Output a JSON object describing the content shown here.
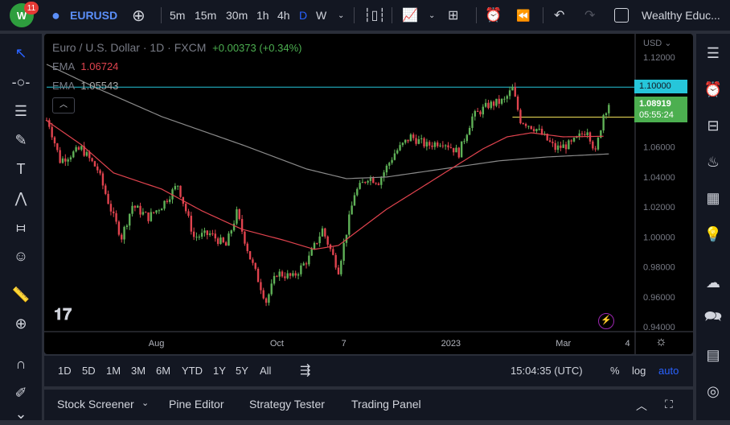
{
  "topbar": {
    "logo": "W",
    "notifications": "11",
    "symbol": "EURUSD",
    "intervals": [
      "5m",
      "15m",
      "30m",
      "1h",
      "4h",
      "D",
      "W"
    ],
    "active_interval": "D",
    "account": "Wealthy Educ..."
  },
  "legend": {
    "title": "Euro / U.S. Dollar · 1D · FXCM",
    "change": "+0.00373 (+0.34%)",
    "ema1_label": "EMA",
    "ema1_value": "1.06724",
    "ema2_label": "EMA",
    "ema2_value": "1.05543"
  },
  "price_axis": {
    "currency": "USD",
    "line_label": "1.10000",
    "current_price": "1.08919",
    "countdown": "05:55:24"
  },
  "colors": {
    "up": "#5fb157",
    "down": "#e0434e",
    "ema_fast": "#e0434e",
    "ema_slow": "#8a8a8a",
    "hline": "#26c6da",
    "hline2": "#f0e05a",
    "current": "#4caf50"
  },
  "chart_data": {
    "type": "candlestick",
    "ylim": [
      0.94,
      1.12
    ],
    "yticks": [
      "1.12000",
      "1.06000",
      "1.04000",
      "1.02000",
      "1.00000",
      "0.98000",
      "0.96000",
      "0.94000"
    ],
    "xticks": [
      {
        "label": "Aug",
        "bar": 41
      },
      {
        "label": "Oct",
        "bar": 86
      },
      {
        "label": "7",
        "bar": 111
      },
      {
        "label": "2023",
        "bar": 151
      },
      {
        "label": "Mar",
        "bar": 193
      },
      {
        "label": "4",
        "bar": 217
      }
    ],
    "bars": 211,
    "close_path": [
      [
        0,
        1.078
      ],
      [
        1,
        1.075
      ],
      [
        5,
        1.051
      ],
      [
        13,
        1.059
      ],
      [
        19,
        1.045
      ],
      [
        25,
        1.013
      ],
      [
        28,
        1.0
      ],
      [
        32,
        1.021
      ],
      [
        38,
        1.013
      ],
      [
        43,
        1.021
      ],
      [
        49,
        1.035
      ],
      [
        55,
        1.0
      ],
      [
        61,
        1.002
      ],
      [
        67,
        0.994
      ],
      [
        71,
        1.016
      ],
      [
        76,
        0.986
      ],
      [
        82,
        0.957
      ],
      [
        86,
        0.976
      ],
      [
        92,
        0.973
      ],
      [
        98,
        0.986
      ],
      [
        103,
        1.005
      ],
      [
        109,
        0.978
      ],
      [
        115,
        1.029
      ],
      [
        120,
        1.04
      ],
      [
        124,
        1.037
      ],
      [
        130,
        1.056
      ],
      [
        136,
        1.067
      ],
      [
        142,
        1.061
      ],
      [
        148,
        1.064
      ],
      [
        154,
        1.056
      ],
      [
        159,
        1.08
      ],
      [
        165,
        1.088
      ],
      [
        171,
        1.091
      ],
      [
        174,
        1.099
      ],
      [
        177,
        1.078
      ],
      [
        183,
        1.072
      ],
      [
        190,
        1.059
      ],
      [
        196,
        1.062
      ],
      [
        202,
        1.072
      ],
      [
        205,
        1.056
      ],
      [
        208,
        1.082
      ],
      [
        210,
        1.089
      ]
    ],
    "ema_fast": [
      [
        0,
        1.0776
      ],
      [
        13,
        1.0615
      ],
      [
        25,
        1.0427
      ],
      [
        43,
        1.0319
      ],
      [
        58,
        1.0174
      ],
      [
        73,
        1.0051
      ],
      [
        88,
        0.9981
      ],
      [
        100,
        0.9917
      ],
      [
        109,
        0.9943
      ],
      [
        115,
        1.0024
      ],
      [
        127,
        1.0185
      ],
      [
        139,
        1.0319
      ],
      [
        151,
        1.0454
      ],
      [
        163,
        1.0588
      ],
      [
        172,
        1.0668
      ],
      [
        181,
        1.0695
      ],
      [
        193,
        1.0668
      ],
      [
        208,
        1.0672
      ]
    ],
    "ema_slow": [
      [
        0,
        1.1152
      ],
      [
        19,
        1.0991
      ],
      [
        43,
        1.0803
      ],
      [
        73,
        1.0615
      ],
      [
        97,
        1.0454
      ],
      [
        112,
        1.0389
      ],
      [
        127,
        1.04
      ],
      [
        148,
        1.0454
      ],
      [
        169,
        1.0508
      ],
      [
        187,
        1.0534
      ],
      [
        210,
        1.0554
      ]
    ],
    "hlines": [
      {
        "price": 1.1,
        "from_bar": 0
      },
      {
        "price": 1.08,
        "from_bar": 174
      }
    ]
  },
  "timeframes": [
    "1D",
    "5D",
    "1M",
    "3M",
    "6M",
    "YTD",
    "1Y",
    "5Y",
    "All"
  ],
  "clock": "15:04:35 (UTC)",
  "scale": {
    "percent": "%",
    "log": "log",
    "auto": "auto"
  },
  "bottom_tabs": [
    "Stock Screener",
    "Pine Editor",
    "Strategy Tester",
    "Trading Panel"
  ]
}
